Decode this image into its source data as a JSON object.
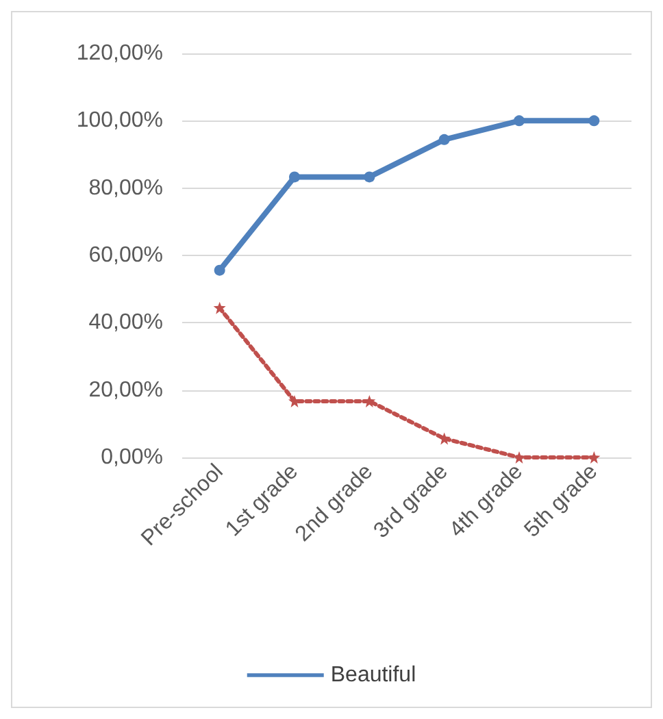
{
  "chart_data": {
    "type": "line",
    "categories": [
      "Pre-school",
      "1st grade",
      "2nd grade",
      "3rd grade",
      "4th grade",
      "5th grade"
    ],
    "series": [
      {
        "name": "Beautiful",
        "color": "#4f81bd",
        "values": [
          55.6,
          83.3,
          83.3,
          94.4,
          100,
          100
        ],
        "marker": "circle",
        "line_style": "solid"
      },
      {
        "color": "#c0504d",
        "values": [
          44.4,
          16.7,
          16.7,
          5.6,
          0,
          0
        ],
        "marker": "star",
        "line_style": "dotted"
      }
    ],
    "ylim": [
      0,
      120
    ],
    "yticks": [
      {
        "value": 0,
        "label": "0,00%"
      },
      {
        "value": 20,
        "label": "20,00%"
      },
      {
        "value": 40,
        "label": "40,00%"
      },
      {
        "value": 60,
        "label": "60,00%"
      },
      {
        "value": 80,
        "label": "80,00%"
      },
      {
        "value": 100,
        "label": "100,00%"
      },
      {
        "value": 120,
        "label": "120,00%"
      }
    ],
    "grid": "y",
    "legend": "bottom"
  }
}
